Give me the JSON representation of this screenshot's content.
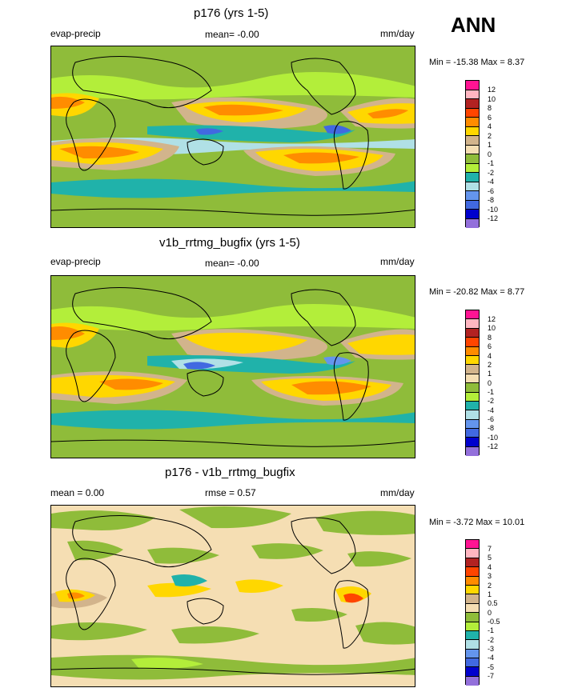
{
  "header": {
    "season": "ANN"
  },
  "panels": [
    {
      "title": "p176 (yrs 1-5)",
      "left_label": "evap-precip",
      "mid_label": "mean=  -0.00",
      "right_label": "mm/day",
      "minmax": "Min = -15.38 Max =   8.37",
      "colors": [
        "#ff1493",
        "#ffb6c1",
        "#b22222",
        "#ff4500",
        "#ff8c00",
        "#ffd700",
        "#d2b48c",
        "#f5deb3",
        "#8fbc3a",
        "#b3ee3a",
        "#20b2aa",
        "#b0e0e6",
        "#6495ed",
        "#4169e1",
        "#0000cd",
        "#9370db"
      ],
      "ticks": [
        "12",
        "10",
        "8",
        "6",
        "4",
        "2",
        "1",
        "0",
        "-1",
        "-2",
        "-4",
        "-6",
        "-8",
        "-10",
        "-12"
      ]
    },
    {
      "title": "v1b_rrtmg_bugfix (yrs 1-5)",
      "left_label": "evap-precip",
      "mid_label": "mean=  -0.00",
      "right_label": "mm/day",
      "minmax": "Min = -20.82 Max =   8.77",
      "colors": [
        "#ff1493",
        "#ffb6c1",
        "#b22222",
        "#ff4500",
        "#ff8c00",
        "#ffd700",
        "#d2b48c",
        "#f5deb3",
        "#8fbc3a",
        "#b3ee3a",
        "#20b2aa",
        "#b0e0e6",
        "#6495ed",
        "#4169e1",
        "#0000cd",
        "#9370db"
      ],
      "ticks": [
        "12",
        "10",
        "8",
        "6",
        "4",
        "2",
        "1",
        "0",
        "-1",
        "-2",
        "-4",
        "-6",
        "-8",
        "-10",
        "-12"
      ]
    },
    {
      "title": "p176 - v1b_rrtmg_bugfix",
      "left_label": "mean =   0.00",
      "mid_label": "rmse =   0.57",
      "right_label": "mm/day",
      "minmax": "Min =  -3.72 Max =  10.01",
      "colors": [
        "#ff1493",
        "#ffb6c1",
        "#b22222",
        "#ff4500",
        "#ff8c00",
        "#ffd700",
        "#d2b48c",
        "#f5deb3",
        "#8fbc3a",
        "#b3ee3a",
        "#20b2aa",
        "#b0e0e6",
        "#6495ed",
        "#4169e1",
        "#0000cd",
        "#9370db"
      ],
      "ticks": [
        "7",
        "5",
        "4",
        "3",
        "2",
        "1",
        "0.5",
        "0",
        "-0.5",
        "-1",
        "-2",
        "-3",
        "-4",
        "-5",
        "-7"
      ]
    }
  ]
}
